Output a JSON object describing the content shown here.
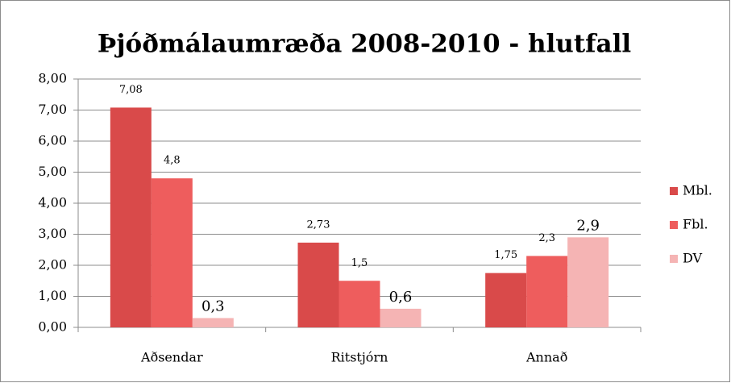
{
  "chart_data": {
    "type": "bar",
    "title": "Þjóðmálaumræða 2008-2010 - hlutfall",
    "categories": [
      "Aðsendar",
      "Ritstjórn",
      "Annað"
    ],
    "series": [
      {
        "name": "Mbl.",
        "color": "#d94a4a",
        "values": [
          7.08,
          2.73,
          1.75
        ],
        "value_labels": [
          "7,08",
          "2,73",
          "1,75"
        ]
      },
      {
        "name": "Fbl.",
        "color": "#ee5d5d",
        "values": [
          4.8,
          1.5,
          2.3
        ],
        "value_labels": [
          "4,8",
          "1,5",
          "2,3"
        ]
      },
      {
        "name": "DV",
        "color": "#f5b4b4",
        "values": [
          0.3,
          0.6,
          2.9
        ],
        "value_labels": [
          "0,3",
          "0,6",
          "2,9"
        ]
      }
    ],
    "ylim": [
      0,
      8
    ],
    "yticks": [
      {
        "value": 0,
        "label": "0,00"
      },
      {
        "value": 1,
        "label": "1,00"
      },
      {
        "value": 2,
        "label": "2,00"
      },
      {
        "value": 3,
        "label": "3,00"
      },
      {
        "value": 4,
        "label": "4,00"
      },
      {
        "value": 5,
        "label": "5,00"
      },
      {
        "value": 6,
        "label": "6,00"
      },
      {
        "value": 7,
        "label": "7,00"
      },
      {
        "value": 8,
        "label": "8,00"
      }
    ],
    "grid": true,
    "legend": "right"
  }
}
